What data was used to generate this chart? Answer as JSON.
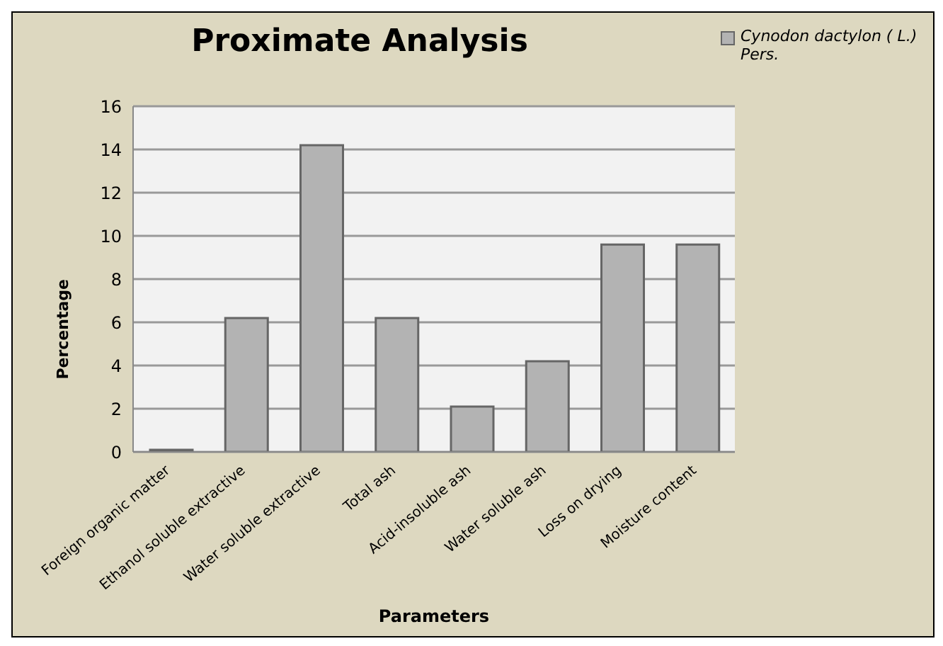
{
  "chart_data": {
    "type": "bar",
    "title": "Proximate Analysis",
    "xlabel": "Parameters",
    "ylabel": "Percentage",
    "categories": [
      "Foreign organic matter",
      "Ethanol soluble extractive",
      "Water soluble extractive",
      "Total ash",
      "Acid-insoluble ash",
      "Water soluble ash",
      "Loss on drying",
      "Moisture content"
    ],
    "series": [
      {
        "name": "Cynodon dactylon ( L.) Pers.",
        "color": "#b3b3b3",
        "values": [
          0.1,
          6.2,
          14.2,
          6.2,
          2.1,
          4.2,
          9.6,
          9.6
        ]
      }
    ],
    "ylim": [
      0,
      16
    ],
    "yticks": [
      0,
      2,
      4,
      6,
      8,
      10,
      12,
      14,
      16
    ],
    "grid": "y",
    "legend": "top right"
  }
}
